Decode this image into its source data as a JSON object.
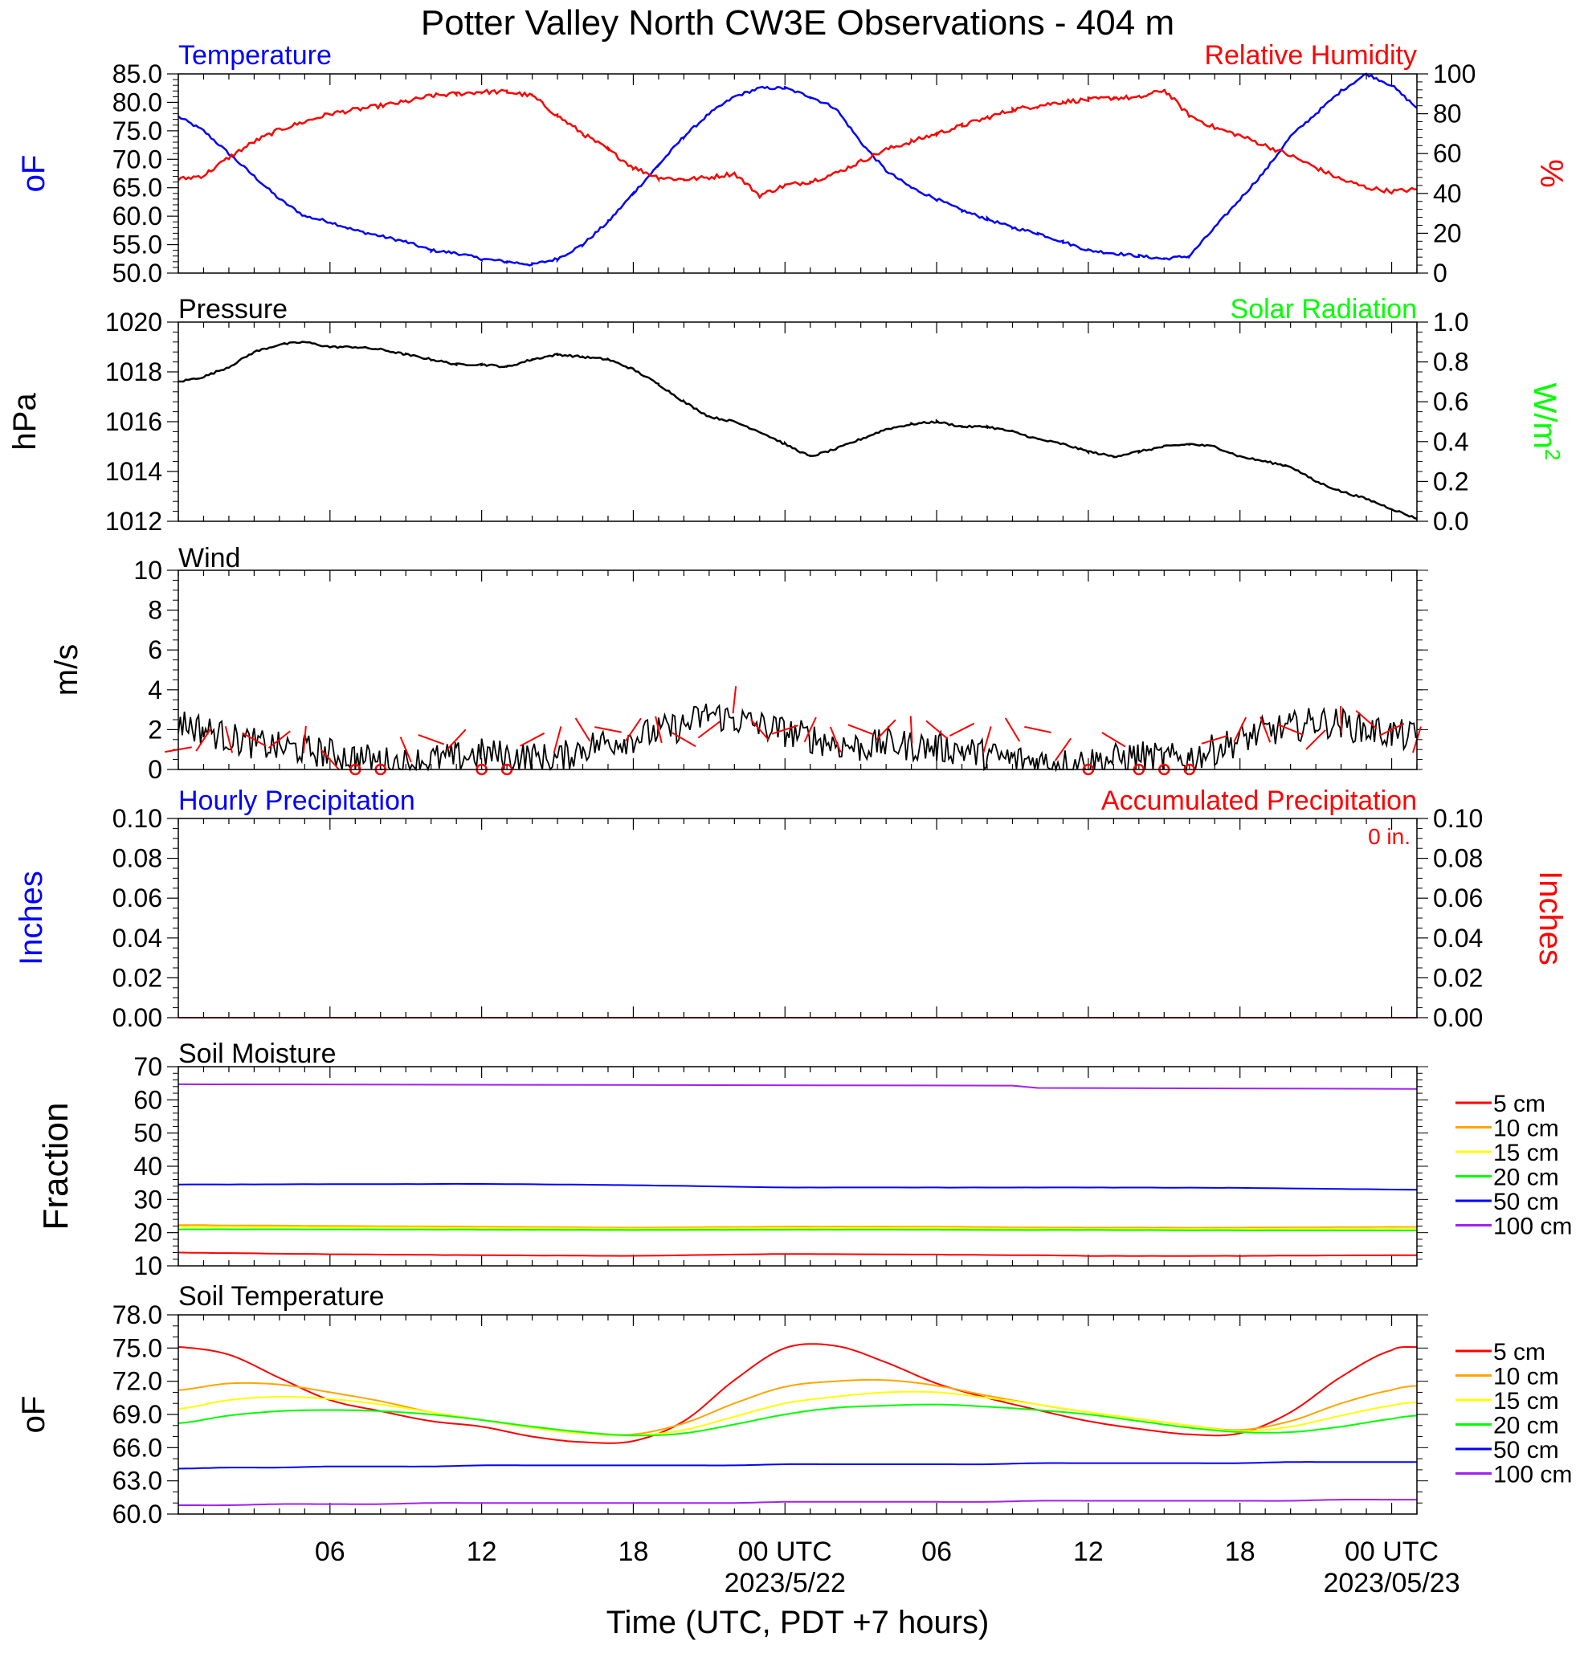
{
  "title": "Potter Valley North CW3E Observations - 404 m",
  "colors": {
    "temperature": "#0000ff",
    "humidity": "#ff0000",
    "pressure": "#000000",
    "solar": "#00ff00",
    "wind": "#000000",
    "barb": "#ff0000",
    "precip_hourly": "#0000ff",
    "precip_accum": "#ff0000"
  },
  "time_axis": {
    "label": "Time (UTC, PDT +7 hours)",
    "range_hours": [
      -24,
      25
    ],
    "major_ticks": [
      -18,
      -12,
      -6,
      0,
      6,
      12,
      18,
      24
    ],
    "tick_labels": [
      "06",
      "12",
      "18",
      "00 UTC",
      "06",
      "12",
      "18",
      "00 UTC"
    ],
    "date_labels": [
      {
        "hour": 0,
        "text": "2023/5/22"
      },
      {
        "hour": 24,
        "text": "2023/05/23"
      }
    ]
  },
  "panels": {
    "temp_rh": {
      "left_label": "Temperature",
      "right_label": "Relative Humidity",
      "left_unit": "oF",
      "right_unit": "%",
      "left_ticks": [
        "85.0",
        "80.0",
        "75.0",
        "70.0",
        "65.0",
        "60.0",
        "55.0",
        "50.0"
      ],
      "right_ticks": [
        "100",
        "80",
        "60",
        "40",
        "20",
        "0"
      ]
    },
    "pressure": {
      "left_label": "Pressure",
      "right_label": "Solar Radiation",
      "left_unit": "hPa",
      "right_unit": "W/m2",
      "left_ticks": [
        "1020",
        "1018",
        "1016",
        "1014",
        "1012"
      ],
      "right_ticks": [
        "1.0",
        "0.8",
        "0.6",
        "0.4",
        "0.2",
        "0.0"
      ]
    },
    "wind": {
      "left_label": "Wind",
      "left_unit": "m/s",
      "left_ticks": [
        "10",
        "8",
        "6",
        "4",
        "2",
        "0"
      ]
    },
    "precip": {
      "left_label": "Hourly Precipitation",
      "right_label": "Accumulated Precipitation",
      "accum_text": "0 in.",
      "left_unit": "Inches",
      "right_unit": "Inches",
      "left_ticks": [
        "0.10",
        "0.08",
        "0.06",
        "0.04",
        "0.02",
        "0.00"
      ],
      "right_ticks": [
        "0.10",
        "0.08",
        "0.06",
        "0.04",
        "0.02",
        "0.00"
      ]
    },
    "soil_moisture": {
      "left_label": "Soil Moisture",
      "left_unit": "Fraction",
      "left_ticks": [
        "70",
        "60",
        "50",
        "40",
        "30",
        "20",
        "10"
      ]
    },
    "soil_temp": {
      "left_label": "Soil Temperature",
      "left_unit": "oF",
      "left_ticks": [
        "78.0",
        "75.0",
        "72.0",
        "69.0",
        "66.0",
        "63.0",
        "60.0"
      ]
    }
  },
  "depth_legend": [
    {
      "label": "5 cm",
      "color": "#ff0000"
    },
    {
      "label": "10 cm",
      "color": "#ffa500"
    },
    {
      "label": "15 cm",
      "color": "#ffff00"
    },
    {
      "label": "20 cm",
      "color": "#00ff00"
    },
    {
      "label": "50 cm",
      "color": "#0000ff"
    },
    {
      "label": "100 cm",
      "color": "#a020f0"
    }
  ],
  "chart_data": [
    {
      "type": "line",
      "title": "Temperature",
      "ylabel": "oF",
      "ylim": [
        50,
        85
      ],
      "x_unit": "hours relative to 2023-05-22 00 UTC",
      "xlim": [
        -24,
        25
      ],
      "x": [
        -24,
        -23,
        -22,
        -21,
        -20,
        -19,
        -18,
        -17,
        -16,
        -15,
        -14,
        -13,
        -12,
        -11,
        -10,
        -9,
        -8,
        -7,
        -6,
        -5,
        -4,
        -3,
        -2,
        -1,
        0,
        1,
        2,
        3,
        4,
        5,
        6,
        7,
        8,
        9,
        10,
        11,
        12,
        13,
        14,
        15,
        16,
        17,
        18,
        19,
        20,
        21,
        22,
        23,
        24,
        25
      ],
      "values": [
        77.5,
        75,
        71,
        67,
        63,
        60,
        59,
        57.5,
        56.5,
        55.5,
        54,
        53.5,
        52.5,
        52,
        51.5,
        52.5,
        55,
        59,
        64,
        69,
        74,
        78,
        81,
        82.5,
        82.5,
        81,
        79,
        73,
        68,
        65,
        63,
        61,
        59.5,
        58,
        57,
        55.5,
        54,
        53.5,
        53,
        52.5,
        53,
        58,
        63,
        68,
        74,
        78,
        82,
        85,
        83,
        79
      ]
    },
    {
      "type": "line",
      "title": "Relative Humidity",
      "ylabel": "%",
      "ylim": [
        0,
        100
      ],
      "x": [
        -24,
        -23,
        -22,
        -21,
        -20,
        -19,
        -18,
        -17,
        -16,
        -15,
        -14,
        -13,
        -12,
        -11,
        -10,
        -9,
        -8,
        -7,
        -6,
        -5,
        -4,
        -3,
        -2,
        -1,
        0,
        1,
        2,
        3,
        4,
        5,
        6,
        7,
        8,
        9,
        10,
        11,
        12,
        13,
        14,
        15,
        16,
        17,
        18,
        19,
        20,
        21,
        22,
        23,
        24,
        25
      ],
      "values": [
        47,
        49,
        58,
        66,
        72,
        76,
        80,
        82,
        84,
        86,
        89,
        90,
        91,
        91,
        89,
        79,
        70,
        62,
        53,
        48,
        47,
        48,
        50,
        39,
        44,
        46,
        50,
        56,
        62,
        66,
        70,
        74,
        78,
        82,
        84,
        86,
        87,
        88,
        88,
        92,
        79,
        73,
        69,
        64,
        59,
        53,
        47,
        43,
        41,
        42
      ]
    },
    {
      "type": "line",
      "title": "Pressure",
      "ylabel": "hPa",
      "ylim": [
        1012,
        1020
      ],
      "x": [
        -24,
        -23,
        -22,
        -21,
        -20,
        -19,
        -18,
        -17,
        -16,
        -15,
        -14,
        -13,
        -12,
        -11,
        -10,
        -9,
        -8,
        -7,
        -6,
        -5,
        -4,
        -3,
        -2,
        -1,
        0,
        1,
        2,
        3,
        4,
        5,
        6,
        7,
        8,
        9,
        10,
        11,
        12,
        13,
        14,
        15,
        16,
        17,
        18,
        19,
        20,
        21,
        22,
        23,
        24,
        25
      ],
      "values": [
        1017.6,
        1017.8,
        1018.2,
        1018.8,
        1019.1,
        1019.2,
        1019.0,
        1019.0,
        1018.9,
        1018.7,
        1018.5,
        1018.3,
        1018.3,
        1018.2,
        1018.5,
        1018.7,
        1018.6,
        1018.5,
        1018.1,
        1017.5,
        1016.8,
        1016.2,
        1016.0,
        1015.6,
        1015.1,
        1014.6,
        1014.9,
        1015.3,
        1015.7,
        1015.9,
        1016.0,
        1015.8,
        1015.8,
        1015.6,
        1015.3,
        1015.1,
        1014.8,
        1014.6,
        1014.8,
        1015.0,
        1015.1,
        1015.0,
        1014.6,
        1014.4,
        1014.2,
        1013.6,
        1013.2,
        1012.9,
        1012.5,
        1012.1
      ]
    },
    {
      "type": "line",
      "title": "Solar Radiation",
      "ylabel": "W/m2",
      "ylim": [
        0.0,
        1.0
      ],
      "x": [],
      "values": []
    },
    {
      "type": "line",
      "title": "Wind",
      "ylabel": "m/s",
      "ylim": [
        0,
        10
      ],
      "x": [
        -24,
        -23,
        -22,
        -21,
        -20,
        -19,
        -18,
        -17,
        -16,
        -15,
        -14,
        -13,
        -12,
        -11,
        -10,
        -9,
        -8,
        -7,
        -6,
        -5,
        -4,
        -3,
        -2,
        -1,
        0,
        1,
        2,
        3,
        4,
        5,
        6,
        7,
        8,
        9,
        10,
        11,
        12,
        13,
        14,
        15,
        16,
        17,
        18,
        19,
        20,
        21,
        22,
        23,
        24,
        25
      ],
      "values": [
        2.4,
        2.0,
        1.6,
        1.3,
        1.1,
        1.0,
        0.8,
        0.6,
        0.4,
        0.3,
        0.5,
        0.6,
        0.8,
        0.7,
        0.6,
        0.5,
        1.1,
        1.4,
        1.6,
        1.9,
        2.2,
        2.8,
        2.5,
        2.2,
        1.9,
        1.6,
        1.3,
        1.1,
        1.3,
        1.2,
        1.1,
        1.0,
        0.7,
        0.5,
        0.4,
        0.3,
        0.4,
        0.5,
        0.7,
        0.5,
        0.6,
        1.0,
        1.5,
        1.9,
        2.1,
        2.4,
        2.3,
        2.0,
        1.8,
        1.6
      ],
      "barbs_m_s": [
        1.0,
        1.5,
        1.5,
        1.5,
        1.5,
        1.5,
        0.5,
        0.0,
        0.0,
        1.0,
        1.5,
        1.5,
        0.0,
        0.0,
        1.5,
        1.5,
        2.0,
        2.0,
        2.0,
        2.0,
        1.5,
        2.0,
        3.5,
        2.0,
        2.0,
        2.0,
        1.5,
        2.0,
        2.0,
        2.0,
        2.0,
        2.0,
        1.5,
        2.0,
        2.0,
        1.0,
        0.0,
        1.5,
        0.0,
        0.0,
        0.0,
        1.5,
        2.0,
        2.0,
        2.0,
        1.5,
        2.5,
        2.5,
        2.0,
        1.5
      ]
    },
    {
      "type": "line",
      "title": "Hourly Precipitation",
      "ylabel": "Inches",
      "ylim": [
        0.0,
        0.1
      ],
      "x": [
        -24,
        25
      ],
      "values": [
        0.0,
        0.0
      ]
    },
    {
      "type": "line",
      "title": "Accumulated Precipitation",
      "ylabel": "Inches",
      "ylim": [
        0.0,
        0.1
      ],
      "x": [
        -24,
        25
      ],
      "values": [
        0.0,
        0.0
      ]
    },
    {
      "type": "line",
      "title": "Soil Moisture",
      "ylabel": "Fraction",
      "ylim": [
        10,
        70
      ],
      "x": [
        -24,
        -18,
        -12,
        -6,
        0,
        6,
        9,
        10,
        12,
        18,
        24,
        25
      ],
      "series": [
        {
          "name": "5 cm",
          "values": [
            14.0,
            13.5,
            13.2,
            13.0,
            13.6,
            13.4,
            13.2,
            13.2,
            13.0,
            13.0,
            13.2,
            13.2
          ]
        },
        {
          "name": "10 cm",
          "values": [
            22.3,
            22.0,
            21.8,
            21.5,
            21.8,
            21.8,
            21.6,
            21.6,
            21.5,
            21.5,
            21.7,
            21.7
          ]
        },
        {
          "name": "15 cm",
          "values": [
            21.8,
            21.6,
            21.4,
            21.2,
            21.4,
            21.4,
            21.2,
            21.2,
            21.1,
            21.1,
            21.3,
            21.3
          ]
        },
        {
          "name": "20 cm",
          "values": [
            21.0,
            21.0,
            20.9,
            20.8,
            20.9,
            20.9,
            20.8,
            20.8,
            20.8,
            20.7,
            20.7,
            20.7
          ]
        },
        {
          "name": "50 cm",
          "values": [
            34.5,
            34.6,
            34.7,
            34.3,
            33.6,
            33.6,
            33.6,
            33.6,
            33.6,
            33.5,
            33.0,
            32.9
          ]
        },
        {
          "name": "100 cm",
          "values": [
            64.7,
            64.7,
            64.6,
            64.5,
            64.4,
            64.3,
            64.3,
            63.6,
            63.5,
            63.3,
            63.3,
            63.3
          ]
        }
      ]
    },
    {
      "type": "line",
      "title": "Soil Temperature",
      "ylabel": "oF",
      "ylim": [
        60,
        78
      ],
      "x": [
        -24,
        -22,
        -20,
        -18,
        -16,
        -14,
        -12,
        -10,
        -8,
        -6,
        -4,
        -2,
        0,
        2,
        4,
        6,
        8,
        10,
        12,
        14,
        16,
        18,
        20,
        22,
        24,
        25
      ],
      "series": [
        {
          "name": "5 cm",
          "values": [
            75.1,
            74.4,
            72.3,
            70.3,
            69.3,
            68.4,
            67.9,
            67.0,
            66.5,
            66.6,
            68.4,
            72.1,
            75.0,
            75.2,
            73.7,
            71.8,
            70.5,
            69.4,
            68.4,
            67.7,
            67.2,
            67.3,
            69.2,
            72.4,
            74.8,
            75.1
          ]
        },
        {
          "name": "10 cm",
          "values": [
            71.2,
            71.8,
            71.7,
            71.0,
            70.2,
            69.2,
            68.5,
            67.8,
            67.3,
            67.2,
            68.2,
            70.0,
            71.5,
            72.0,
            72.1,
            71.6,
            70.7,
            69.9,
            69.2,
            68.6,
            68.0,
            67.6,
            68.4,
            70.0,
            71.2,
            71.6
          ]
        },
        {
          "name": "15 cm",
          "values": [
            69.5,
            70.3,
            70.6,
            70.4,
            69.9,
            69.2,
            68.5,
            67.8,
            67.3,
            67.1,
            67.6,
            68.8,
            70.0,
            70.6,
            71.0,
            71.0,
            70.5,
            69.9,
            69.2,
            68.6,
            68.0,
            67.5,
            67.9,
            68.9,
            69.8,
            70.1
          ]
        },
        {
          "name": "20 cm",
          "values": [
            68.2,
            68.9,
            69.3,
            69.4,
            69.3,
            69.0,
            68.5,
            67.9,
            67.4,
            67.1,
            67.3,
            68.1,
            69.0,
            69.6,
            69.8,
            69.9,
            69.7,
            69.4,
            69.0,
            68.4,
            67.8,
            67.4,
            67.4,
            67.9,
            68.6,
            68.9
          ]
        },
        {
          "name": "50 cm",
          "values": [
            64.1,
            64.2,
            64.2,
            64.3,
            64.3,
            64.3,
            64.4,
            64.4,
            64.4,
            64.4,
            64.4,
            64.4,
            64.5,
            64.5,
            64.5,
            64.5,
            64.5,
            64.6,
            64.6,
            64.6,
            64.6,
            64.6,
            64.7,
            64.7,
            64.7,
            64.7
          ]
        },
        {
          "name": "100 cm",
          "values": [
            60.8,
            60.8,
            60.9,
            60.9,
            60.9,
            61.0,
            61.0,
            61.0,
            61.0,
            61.0,
            61.0,
            61.0,
            61.1,
            61.1,
            61.1,
            61.1,
            61.1,
            61.2,
            61.2,
            61.2,
            61.2,
            61.2,
            61.2,
            61.3,
            61.3,
            61.3
          ]
        }
      ]
    }
  ]
}
